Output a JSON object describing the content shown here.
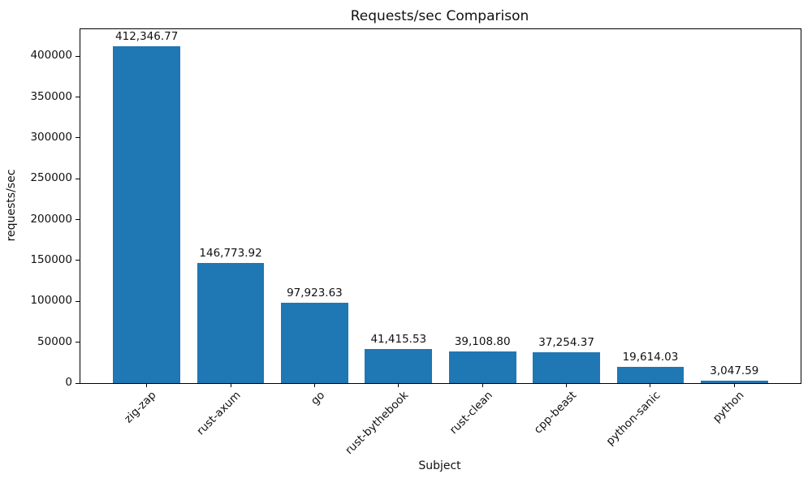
{
  "chart_data": {
    "type": "bar",
    "title": "Requests/sec Comparison",
    "xlabel": "Subject",
    "ylabel": "requests/sec",
    "categories": [
      "zig-zap",
      "rust-axum",
      "go",
      "rust-bythebook",
      "rust-clean",
      "cpp-beast",
      "python-sanic",
      "python"
    ],
    "values": [
      412346.77,
      146773.92,
      97923.63,
      41415.53,
      39108.8,
      37254.37,
      19614.03,
      3047.59
    ],
    "value_labels": [
      "412,346.77",
      "146,773.92",
      "97,923.63",
      "41,415.53",
      "39,108.80",
      "37,254.37",
      "19,614.03",
      "3,047.59"
    ],
    "yticks": [
      0,
      50000,
      100000,
      150000,
      200000,
      250000,
      300000,
      350000,
      400000
    ],
    "ylim": [
      0,
      433000
    ],
    "grid": false,
    "legend_position": "none",
    "bar_color": "#1f77b4",
    "axis_color": "#000000",
    "text_color": "#111111",
    "background_color": "#ffffff"
  }
}
